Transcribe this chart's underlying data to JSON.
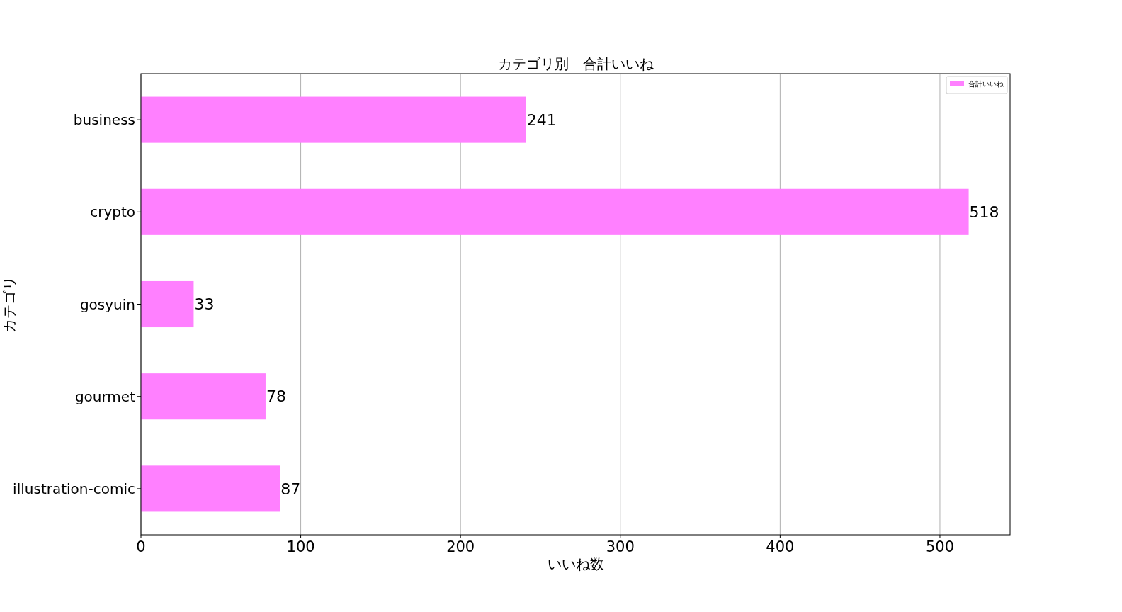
{
  "chart_data": {
    "type": "bar",
    "orientation": "horizontal",
    "title": "カテゴリ別　合計いいね",
    "xlabel": "いいね数",
    "ylabel": "カテゴリ",
    "categories": [
      "business",
      "crypto",
      "gosyuin",
      "gourmet",
      "illustration-comic"
    ],
    "series": [
      {
        "name": "合計いいね",
        "color": "#ff80ff",
        "values": [
          241,
          518,
          33,
          78,
          87
        ]
      }
    ],
    "xlim": [
      0,
      543.9
    ],
    "xticks": [
      0,
      100,
      200,
      300,
      400,
      500
    ],
    "grid": "x",
    "legend": "top right",
    "data_labels": true
  }
}
